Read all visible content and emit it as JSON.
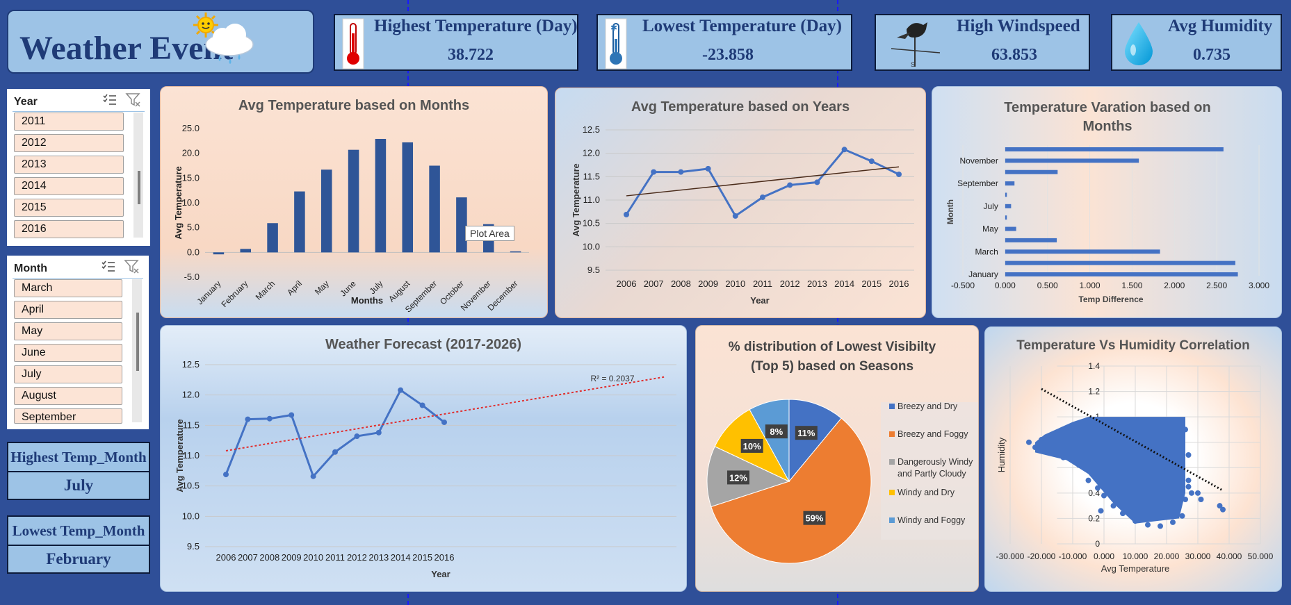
{
  "title": "Weather Event",
  "kpis": [
    {
      "label": "Highest Temperature (Day)",
      "value": "38.722",
      "icon": "thermometer-hot-icon"
    },
    {
      "label": "Lowest Temperature (Day)",
      "value": "-23.858",
      "icon": "thermometer-cold-icon"
    },
    {
      "label": "High Windspeed",
      "value": "63.853",
      "icon": "weathervane-icon"
    },
    {
      "label": "Avg Humidity",
      "value": "0.735",
      "icon": "water-drop-icon"
    }
  ],
  "slicer_year": {
    "header": "Year",
    "items": [
      "2011",
      "2012",
      "2013",
      "2014",
      "2015",
      "2016"
    ]
  },
  "slicer_month": {
    "header": "Month",
    "items": [
      "March",
      "April",
      "May",
      "June",
      "July",
      "August",
      "September"
    ]
  },
  "highest_month": {
    "label": "Highest Temp_Month",
    "value": "July"
  },
  "lowest_month": {
    "label": "Lowest Temp_Month",
    "value": "February"
  },
  "tooltip": "Plot Area",
  "colors": {
    "bar": "#2f5597",
    "line": "#4472c4",
    "orange": "#ed7d31",
    "gray": "#a5a5a5",
    "yellow": "#ffc000",
    "lightblue": "#5b9bd5"
  },
  "chart_data": [
    {
      "id": "monthly_avg",
      "type": "bar",
      "title": "Avg Temperature based on Months",
      "xlabel": "Months",
      "ylabel": "Avg Temperature",
      "categories": [
        "January",
        "February",
        "March",
        "April",
        "May",
        "June",
        "July",
        "August",
        "September",
        "October",
        "November",
        "December"
      ],
      "values": [
        -0.4,
        0.7,
        5.9,
        12.3,
        16.7,
        20.7,
        22.9,
        22.2,
        17.5,
        11.1,
        5.7,
        0.2
      ],
      "yticks": [
        "-5.0",
        "0.0",
        "5.0",
        "10.0",
        "15.0",
        "20.0",
        "25.0"
      ],
      "ylim": [
        -5,
        25
      ]
    },
    {
      "id": "yearly_avg",
      "type": "line",
      "title": "Avg Temperature based on Years",
      "xlabel": "Year",
      "ylabel": "Avg Temperature",
      "x": [
        "2006",
        "2007",
        "2008",
        "2009",
        "2010",
        "2011",
        "2012",
        "2013",
        "2014",
        "2015",
        "2016"
      ],
      "values": [
        10.69,
        11.6,
        11.6,
        11.67,
        10.66,
        11.06,
        11.32,
        11.38,
        12.08,
        11.83,
        11.55
      ],
      "yticks": [
        "9.5",
        "10.0",
        "10.5",
        "11.0",
        "11.5",
        "12.0",
        "12.5"
      ],
      "ylim": [
        9.5,
        12.5
      ],
      "trendline": [
        11.09,
        11.71
      ]
    },
    {
      "id": "monthly_variation",
      "type": "bar",
      "title_lines": [
        "Temperature Varation based on",
        "Months"
      ],
      "xlabel": "Temp Difference",
      "ylabel": "Month",
      "categories": [
        "January",
        "February",
        "March",
        "April",
        "May",
        "June",
        "July",
        "August",
        "September",
        "October",
        "November",
        "December"
      ],
      "category_labels": [
        "January",
        "March",
        "May",
        "July",
        "September",
        "November"
      ],
      "values": [
        2.75,
        2.72,
        1.83,
        0.61,
        0.13,
        0.02,
        0.07,
        0.02,
        0.11,
        0.62,
        1.58,
        2.58
      ],
      "xticks": [
        "-0.500",
        "0.000",
        "0.500",
        "1.000",
        "1.500",
        "2.000",
        "2.500",
        "3.000"
      ],
      "xlim": [
        -0.5,
        3.0
      ]
    },
    {
      "id": "forecast",
      "type": "line",
      "title": "Weather Forecast (2017-2026)",
      "xlabel": "Year",
      "ylabel": "Avg Temperature",
      "x": [
        "2006",
        "2007",
        "2008",
        "2009",
        "2010",
        "2011",
        "2012",
        "2013",
        "2014",
        "2015",
        "2016"
      ],
      "values": [
        10.69,
        11.6,
        11.61,
        11.67,
        10.66,
        11.06,
        11.32,
        11.38,
        12.08,
        11.83,
        11.55
      ],
      "yticks": [
        "9.5",
        "10.0",
        "10.5",
        "11.0",
        "11.5",
        "12.0",
        "12.5"
      ],
      "ylim": [
        9.5,
        12.5
      ],
      "r2": "R² = 0.2037",
      "trendline": [
        11.08,
        12.3
      ]
    },
    {
      "id": "visibility_pie",
      "type": "pie",
      "title_lines": [
        "% distribution of Lowest Visibilty",
        "(Top 5) based on Seasons"
      ],
      "labels": [
        "Breezy and Dry",
        "Breezy and Foggy",
        "Dangerously Windy and Partly Cloudy",
        "Windy and Dry",
        "Windy and Foggy"
      ],
      "legend_lines": [
        [
          "Breezy and Dry"
        ],
        [
          "Breezy and Foggy"
        ],
        [
          "Dangerously Windy",
          "and Partly Cloudy"
        ],
        [
          "Windy and Dry"
        ],
        [
          "Windy and Foggy"
        ]
      ],
      "values": [
        11,
        59,
        12,
        10,
        8
      ],
      "colors": [
        "#4472c4",
        "#ed7d31",
        "#a5a5a5",
        "#ffc000",
        "#5b9bd5"
      ]
    },
    {
      "id": "temp_humidity",
      "type": "scatter",
      "title": "Temperature Vs Humidity Correlation",
      "xlabel": "Avg Temperature",
      "ylabel": "Humidity",
      "xticks": [
        "-30.000",
        "-20.000",
        "-10.000",
        "0.000",
        "10.000",
        "20.000",
        "30.000",
        "40.000",
        "50.000"
      ],
      "yticks": [
        "0",
        "0.2",
        "0.4",
        "0.6",
        "0.8",
        "1",
        "1.2",
        "1.4"
      ],
      "xlim": [
        -30,
        50
      ],
      "ylim": [
        0,
        1.4
      ],
      "trend": [
        [
          -20,
          1.22
        ],
        [
          38,
          0.42
        ]
      ],
      "cloud_top": 1.0,
      "cloud_x": [
        -22,
        26
      ],
      "outliers": [
        [
          38,
          0.27
        ],
        [
          37,
          0.3
        ],
        [
          30,
          0.4
        ],
        [
          31,
          0.35
        ],
        [
          -1,
          0.26
        ]
      ]
    }
  ]
}
